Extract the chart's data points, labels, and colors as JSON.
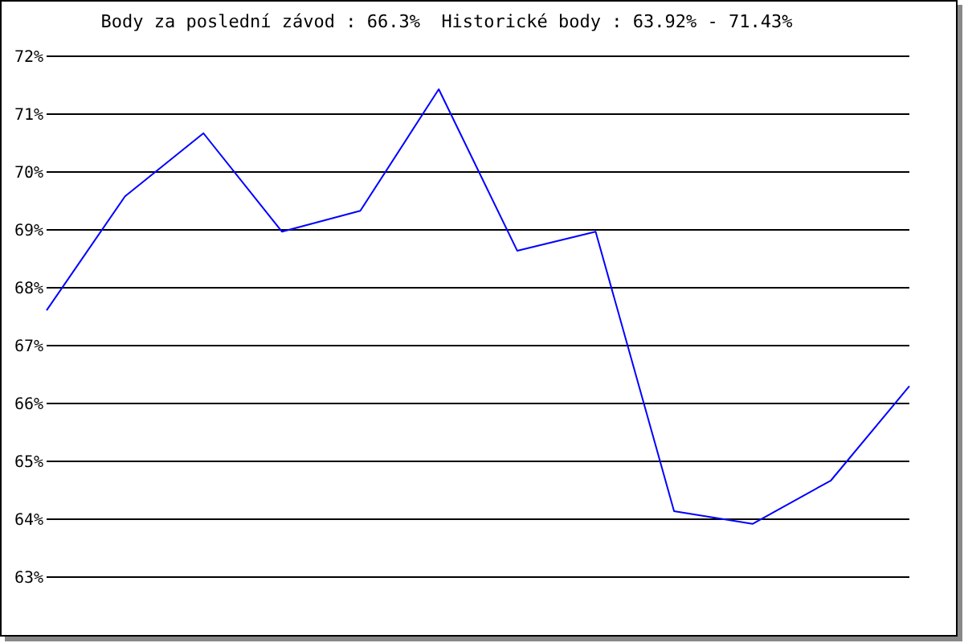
{
  "chart_data": {
    "type": "line",
    "title": "Body za poslední závod : 66.3%  Historické body : 63.92% - 71.43%",
    "categories": [
      null,
      null,
      null,
      null,
      null,
      null,
      null,
      null,
      null,
      null,
      null,
      null
    ],
    "series": [
      {
        "color": "#0000ff",
        "values": [
          67.61,
          69.58,
          70.67,
          68.97,
          69.33,
          71.43,
          68.64,
          68.97,
          64.14,
          63.92,
          64.67,
          66.3
        ]
      }
    ],
    "ylim": [
      63,
      72
    ],
    "yticks": [
      {
        "value": 63,
        "label": "63%"
      },
      {
        "value": 64,
        "label": "64%"
      },
      {
        "value": 65,
        "label": "65%"
      },
      {
        "value": 66,
        "label": "66%"
      },
      {
        "value": 67,
        "label": "67%"
      },
      {
        "value": 68,
        "label": "68%"
      },
      {
        "value": 69,
        "label": "69%"
      },
      {
        "value": 70,
        "label": "70%"
      },
      {
        "value": 71,
        "label": "71%"
      },
      {
        "value": 72,
        "label": "72%"
      }
    ],
    "grid": "y",
    "marker": "none",
    "line_style": "solid"
  }
}
